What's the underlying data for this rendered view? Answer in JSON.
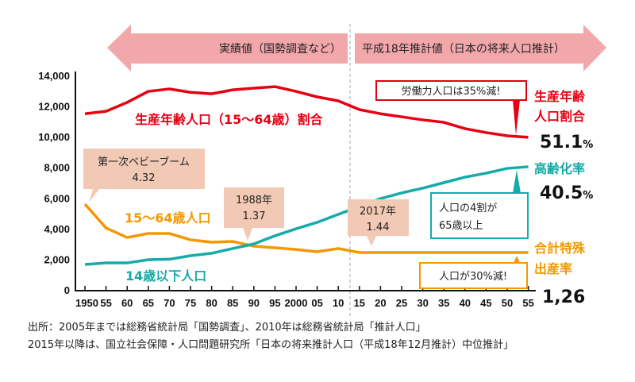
{
  "header": {
    "past_label": "実績値（国勢調査など）",
    "future_label": "平成18年推計値（日本の将来人口推計）",
    "arrow_color": "#f2a7ab"
  },
  "chart_data": {
    "type": "line",
    "x": [
      1950,
      1955,
      1960,
      1965,
      1970,
      1975,
      1980,
      1985,
      1990,
      1995,
      2000,
      2005,
      2010,
      2015,
      2020,
      2025,
      2030,
      2035,
      2040,
      2045,
      2050,
      2055
    ],
    "x_tick_labels": [
      "1950",
      "55",
      "60",
      "65",
      "70",
      "75",
      "80",
      "85",
      "90",
      "95",
      "2000",
      "05",
      "10",
      "15",
      "20",
      "25",
      "30",
      "35",
      "40",
      "45",
      "50",
      "55"
    ],
    "y_ticks": [
      0,
      2000,
      4000,
      6000,
      8000,
      10000,
      12000,
      14000
    ],
    "y_tick_labels": [
      "0",
      "2,000",
      "4,000",
      "6,000",
      "8,000",
      "10,000",
      "12,000",
      "14,000"
    ],
    "ylim": [
      0,
      14000
    ],
    "projection_start": 2012,
    "series": [
      {
        "name": "生産年齢人口（15〜64歳）割合",
        "color": "#e60012",
        "values": [
          11500,
          11660,
          12240,
          12960,
          13120,
          12900,
          12800,
          13060,
          13170,
          13270,
          12960,
          12600,
          12340,
          11770,
          11500,
          11300,
          11100,
          10940,
          10530,
          10270,
          10060,
          9960
        ]
      },
      {
        "name": "15〜64歳人口",
        "color": "#f39800",
        "values": [
          5600,
          4040,
          3420,
          3680,
          3680,
          3270,
          3110,
          3160,
          2850,
          2750,
          2640,
          2490,
          2700,
          2440,
          2440,
          2440,
          2440,
          2440,
          2440,
          2440,
          2440,
          2440
        ]
      },
      {
        "name": "14歳以下人口",
        "color": "#16aaa8",
        "values": [
          1660,
          1760,
          1760,
          1970,
          2000,
          2230,
          2390,
          2700,
          3000,
          3530,
          3990,
          4410,
          4930,
          5440,
          5960,
          6330,
          6640,
          7000,
          7360,
          7620,
          7930,
          8040
        ]
      }
    ],
    "callouts": {
      "baby_boom": {
        "title": "第一次ベビーブーム",
        "value": "4.32"
      },
      "y1988": {
        "title": "1988年",
        "value": "1.37"
      },
      "y2017": {
        "title": "2017年",
        "value": "1.44"
      },
      "labor": "労働力人口は35%減!",
      "elderly": [
        "人口の4割が",
        "65歳以上"
      ],
      "population": "人口が30%減!"
    },
    "right_labels": {
      "working": {
        "lines": [
          "生産年齢",
          "人口割合"
        ],
        "value": "51.1",
        "unit": "%"
      },
      "aging": {
        "line": "高齢化率",
        "value": "40.5",
        "unit": "%"
      },
      "fertility": {
        "lines": [
          "合計特殊",
          "出産率"
        ],
        "value": "1,26"
      }
    }
  },
  "source": [
    "出所：2005年までは総務省統計局「国勢調査」、2010年は総務省統計局「推計人口」",
    "2015年以降は、国立社会保障・人口問題研究所「日本の将来推計人口（平成18年12月推計）中位推計」"
  ]
}
